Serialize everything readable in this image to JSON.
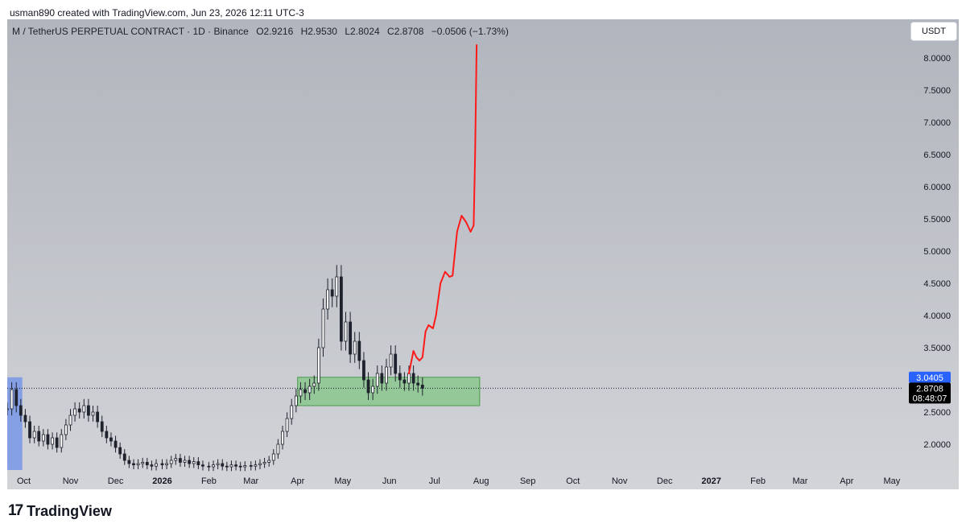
{
  "credit": "usman890 created with TradingView.com, Jun 23, 2026 12:11 UTC-3",
  "legend": {
    "symbol": "M / TetherUS PERPETUAL CONTRACT · 1D · Binance",
    "open": "O2.9216",
    "high": "H2.9530",
    "low": "L2.8024",
    "close": "C2.8708",
    "change": "−0.0506 (−1.73%)"
  },
  "currency_button": "USDT",
  "logo_text": "TradingView",
  "colors": {
    "bull": "#1e222d",
    "bear": "#1e222d",
    "projection": "#ff1a1a",
    "zone_fill": "#78c47a",
    "zone_border": "#4a9a4c",
    "highlight": "#7896e6",
    "badge_blue": "#2962ff",
    "badge_black": "#000000"
  },
  "chart_data": {
    "type": "candlestick",
    "y_axis": {
      "min": 1.6,
      "max": 8.6,
      "ticks": [
        "8.0000",
        "7.5000",
        "7.0000",
        "6.5000",
        "6.0000",
        "5.5000",
        "5.0000",
        "4.5000",
        "4.0000",
        "3.5000",
        "3.0000",
        "2.5000",
        "2.0000"
      ],
      "scale": "linear"
    },
    "x_axis": {
      "labels": [
        {
          "text": "Oct",
          "date": "2025-10-01",
          "bold": false
        },
        {
          "text": "Nov",
          "date": "2025-11-01",
          "bold": false
        },
        {
          "text": "Dec",
          "date": "2025-12-01",
          "bold": false
        },
        {
          "text": "2026",
          "date": "2026-01-01",
          "bold": true
        },
        {
          "text": "Feb",
          "date": "2026-02-01",
          "bold": false
        },
        {
          "text": "Mar",
          "date": "2026-03-01",
          "bold": false
        },
        {
          "text": "Apr",
          "date": "2026-04-01",
          "bold": false
        },
        {
          "text": "May",
          "date": "2026-05-01",
          "bold": false
        },
        {
          "text": "Jun",
          "date": "2026-06-01",
          "bold": false
        },
        {
          "text": "Jul",
          "date": "2026-07-01",
          "bold": false
        },
        {
          "text": "Aug",
          "date": "2026-08-01",
          "bold": false
        },
        {
          "text": "Sep",
          "date": "2026-09-01",
          "bold": false
        },
        {
          "text": "Oct",
          "date": "2026-10-01",
          "bold": false
        },
        {
          "text": "Nov",
          "date": "2026-11-01",
          "bold": false
        },
        {
          "text": "Dec",
          "date": "2026-12-01",
          "bold": false
        },
        {
          "text": "2027",
          "date": "2027-01-01",
          "bold": true
        },
        {
          "text": "Feb",
          "date": "2027-02-01",
          "bold": false
        },
        {
          "text": "Mar",
          "date": "2027-03-01",
          "bold": false
        },
        {
          "text": "Apr",
          "date": "2027-04-01",
          "bold": false
        },
        {
          "text": "May",
          "date": "2027-05-01",
          "bold": false
        }
      ]
    },
    "price_series": [
      [
        "2025-09-20",
        2.55
      ],
      [
        "2025-09-23",
        2.85
      ],
      [
        "2025-09-26",
        2.6
      ],
      [
        "2025-09-29",
        2.45
      ],
      [
        "2025-10-02",
        2.35
      ],
      [
        "2025-10-05",
        2.1
      ],
      [
        "2025-10-08",
        2.2
      ],
      [
        "2025-10-11",
        2.05
      ],
      [
        "2025-10-14",
        2.15
      ],
      [
        "2025-10-17",
        2.0
      ],
      [
        "2025-10-20",
        2.1
      ],
      [
        "2025-10-23",
        1.95
      ],
      [
        "2025-10-26",
        2.15
      ],
      [
        "2025-10-29",
        2.3
      ],
      [
        "2025-11-01",
        2.45
      ],
      [
        "2025-11-04",
        2.55
      ],
      [
        "2025-11-07",
        2.5
      ],
      [
        "2025-11-10",
        2.6
      ],
      [
        "2025-11-13",
        2.45
      ],
      [
        "2025-11-16",
        2.5
      ],
      [
        "2025-11-19",
        2.35
      ],
      [
        "2025-11-22",
        2.2
      ],
      [
        "2025-11-25",
        2.1
      ],
      [
        "2025-11-28",
        2.05
      ],
      [
        "2025-12-01",
        1.95
      ],
      [
        "2025-12-04",
        1.85
      ],
      [
        "2025-12-07",
        1.75
      ],
      [
        "2025-12-10",
        1.7
      ],
      [
        "2025-12-13",
        1.68
      ],
      [
        "2025-12-16",
        1.7
      ],
      [
        "2025-12-19",
        1.72
      ],
      [
        "2025-12-22",
        1.68
      ],
      [
        "2025-12-25",
        1.66
      ],
      [
        "2025-12-28",
        1.7
      ],
      [
        "2026-01-01",
        1.68
      ],
      [
        "2026-01-04",
        1.7
      ],
      [
        "2026-01-07",
        1.75
      ],
      [
        "2026-01-10",
        1.78
      ],
      [
        "2026-01-13",
        1.72
      ],
      [
        "2026-01-16",
        1.75
      ],
      [
        "2026-01-19",
        1.7
      ],
      [
        "2026-01-22",
        1.73
      ],
      [
        "2026-01-25",
        1.68
      ],
      [
        "2026-01-28",
        1.66
      ],
      [
        "2026-02-01",
        1.65
      ],
      [
        "2026-02-04",
        1.68
      ],
      [
        "2026-02-07",
        1.7
      ],
      [
        "2026-02-10",
        1.66
      ],
      [
        "2026-02-13",
        1.65
      ],
      [
        "2026-02-16",
        1.68
      ],
      [
        "2026-02-19",
        1.66
      ],
      [
        "2026-02-22",
        1.65
      ],
      [
        "2026-02-25",
        1.67
      ],
      [
        "2026-03-01",
        1.66
      ],
      [
        "2026-03-04",
        1.68
      ],
      [
        "2026-03-07",
        1.7
      ],
      [
        "2026-03-10",
        1.72
      ],
      [
        "2026-03-13",
        1.75
      ],
      [
        "2026-03-16",
        1.85
      ],
      [
        "2026-03-19",
        2.0
      ],
      [
        "2026-03-22",
        2.2
      ],
      [
        "2026-03-25",
        2.4
      ],
      [
        "2026-03-28",
        2.6
      ],
      [
        "2026-03-31",
        2.75
      ],
      [
        "2026-04-03",
        2.85
      ],
      [
        "2026-04-06",
        2.8
      ],
      [
        "2026-04-09",
        2.9
      ],
      [
        "2026-04-12",
        2.95
      ],
      [
        "2026-04-15",
        3.5
      ],
      [
        "2026-04-18",
        4.1
      ],
      [
        "2026-04-21",
        4.4
      ],
      [
        "2026-04-24",
        4.3
      ],
      [
        "2026-04-27",
        4.6
      ],
      [
        "2026-04-30",
        3.6
      ],
      [
        "2026-05-03",
        3.9
      ],
      [
        "2026-05-06",
        3.4
      ],
      [
        "2026-05-09",
        3.6
      ],
      [
        "2026-05-12",
        3.3
      ],
      [
        "2026-05-15",
        3.0
      ],
      [
        "2026-05-18",
        2.8
      ],
      [
        "2026-05-21",
        2.9
      ],
      [
        "2026-05-24",
        3.1
      ],
      [
        "2026-05-27",
        2.95
      ],
      [
        "2026-05-30",
        3.2
      ],
      [
        "2026-06-02",
        3.4
      ],
      [
        "2026-06-05",
        3.1
      ],
      [
        "2026-06-08",
        3.0
      ],
      [
        "2026-06-11",
        2.95
      ],
      [
        "2026-06-14",
        3.1
      ],
      [
        "2026-06-17",
        2.95
      ],
      [
        "2026-06-20",
        2.92
      ],
      [
        "2026-06-23",
        2.8708
      ]
    ],
    "projection_path": [
      [
        "2026-06-14",
        3.1
      ],
      [
        "2026-06-17",
        3.45
      ],
      [
        "2026-06-19",
        3.35
      ],
      [
        "2026-06-21",
        3.3
      ],
      [
        "2026-06-23",
        3.35
      ],
      [
        "2026-06-25",
        3.75
      ],
      [
        "2026-06-27",
        3.85
      ],
      [
        "2026-06-30",
        3.8
      ],
      [
        "2026-07-02",
        4.0
      ],
      [
        "2026-07-05",
        4.5
      ],
      [
        "2026-07-08",
        4.68
      ],
      [
        "2026-07-11",
        4.6
      ],
      [
        "2026-07-13",
        4.62
      ],
      [
        "2026-07-16",
        5.3
      ],
      [
        "2026-07-19",
        5.55
      ],
      [
        "2026-07-22",
        5.45
      ],
      [
        "2026-07-25",
        5.3
      ],
      [
        "2026-07-27",
        5.4
      ],
      [
        "2026-07-28",
        6.5
      ],
      [
        "2026-07-29",
        8.2
      ]
    ],
    "highlight_zone": {
      "x_start": "2026-04-01",
      "x_end": "2026-07-31",
      "y_low": 2.6,
      "y_high": 3.0405
    },
    "left_highlight": {
      "x_start": "2025-09-20",
      "x_end": "2025-09-30"
    },
    "current_price": 2.8708,
    "price_labels": [
      {
        "value": 3.0405,
        "text": "3.0405",
        "style": "blue"
      },
      {
        "value": 2.8708,
        "text": "2.8708",
        "style": "black"
      }
    ],
    "countdown": "08:48:07",
    "grid": false
  }
}
